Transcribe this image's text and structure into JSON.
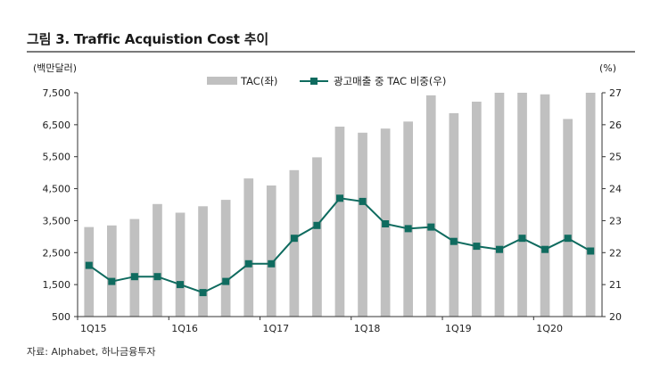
{
  "title": "그림 3. Traffic Acquistion Cost 추이",
  "source": "자료: Alphabet, 하나금융투자",
  "chart_data": {
    "type": "bar+line",
    "left_axis": {
      "unit_label": "(백만달러)",
      "ylim": [
        500,
        7500
      ],
      "ticks": [
        "7,500",
        "6,500",
        "5,500",
        "4,500",
        "3,500",
        "2,500",
        "1,500",
        "500"
      ]
    },
    "right_axis": {
      "unit_label": "(%)",
      "ylim": [
        20,
        27
      ],
      "ticks": [
        "27",
        "26",
        "25",
        "24",
        "23",
        "22",
        "21",
        "20"
      ]
    },
    "x_tick_labels": [
      {
        "index": 0,
        "label": "1Q15"
      },
      {
        "index": 4,
        "label": "1Q16"
      },
      {
        "index": 8,
        "label": "1Q17"
      },
      {
        "index": 12,
        "label": "1Q18"
      },
      {
        "index": 16,
        "label": "1Q19"
      },
      {
        "index": 20,
        "label": "1Q20"
      }
    ],
    "series": [
      {
        "name": "TAC(좌)",
        "type": "bar",
        "axis": "left",
        "color": "#c0c0c0",
        "values": [
          3300,
          3350,
          3550,
          4020,
          3750,
          3950,
          4150,
          4820,
          4600,
          5080,
          5480,
          6440,
          6250,
          6380,
          6600,
          7420,
          6860,
          7220,
          7500,
          7500,
          7450,
          6680,
          7500
        ]
      },
      {
        "name": "광고매출 중 TAC 비중(우)",
        "type": "line",
        "axis": "right",
        "color": "#0f6b5f",
        "values": [
          21.6,
          21.1,
          21.25,
          21.25,
          21.0,
          20.75,
          21.1,
          21.65,
          21.65,
          22.45,
          22.85,
          23.7,
          23.6,
          22.9,
          22.75,
          22.8,
          22.35,
          22.2,
          22.1,
          22.45,
          22.1,
          22.45,
          22.05
        ]
      }
    ],
    "legend_position": "top-center"
  }
}
